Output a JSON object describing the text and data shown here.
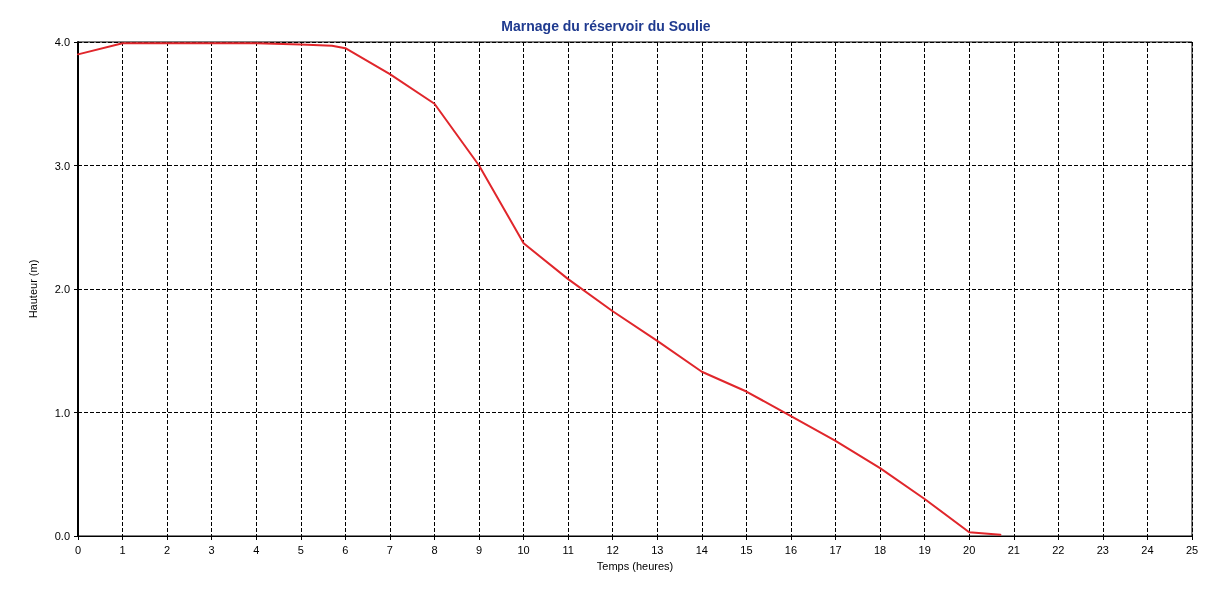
{
  "chart_data": {
    "type": "line",
    "title": "Marnage du réservoir du Soulie",
    "xlabel": "Temps (heures)",
    "ylabel": "Hauteur (m)",
    "x": [
      0,
      1,
      2,
      3,
      4,
      5,
      5.7,
      6,
      7,
      8,
      9,
      10,
      11,
      12,
      13,
      14,
      15,
      16,
      17,
      18,
      19,
      20,
      20.7
    ],
    "series": [
      {
        "color": "#e0262b",
        "values": [
          3.9,
          3.99,
          3.99,
          3.99,
          3.99,
          3.98,
          3.97,
          3.95,
          3.74,
          3.5,
          3.0,
          2.37,
          2.08,
          1.82,
          1.58,
          1.33,
          1.17,
          0.97,
          0.77,
          0.55,
          0.3,
          0.03,
          0.01
        ]
      }
    ],
    "xlim": [
      0,
      25
    ],
    "xticks": [
      0,
      1,
      2,
      3,
      4,
      5,
      6,
      7,
      8,
      9,
      10,
      11,
      12,
      13,
      14,
      15,
      16,
      17,
      18,
      19,
      20,
      21,
      22,
      23,
      24,
      25
    ],
    "ylim": [
      0,
      4
    ],
    "yticks": [
      {
        "value": 0,
        "label": "0.0"
      },
      {
        "value": 1,
        "label": "1.0"
      },
      {
        "value": 2,
        "label": "2.0"
      },
      {
        "value": 3,
        "label": "3.0"
      },
      {
        "value": 4,
        "label": "4.0"
      }
    ],
    "grid": true,
    "marker": "none",
    "line_style": "solid"
  }
}
